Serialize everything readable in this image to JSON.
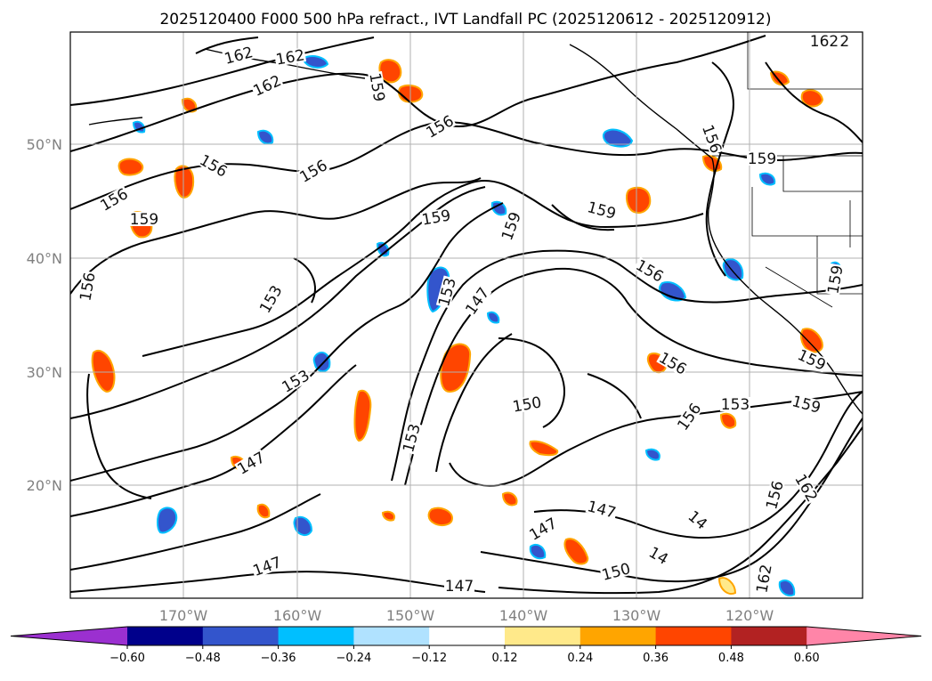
{
  "title": "2025120400 F000 500 hPa refract., IVT Landfall PC (2025120612 - 2025120912)",
  "map": {
    "lat_labels": [
      "50°N",
      "40°N",
      "30°N",
      "20°N"
    ],
    "lon_labels": [
      "170°W",
      "160°W",
      "150°W",
      "140°W",
      "130°W",
      "120°W"
    ],
    "contour_labels": [
      "162",
      "162",
      "162",
      "162",
      "159",
      "156",
      "156",
      "156",
      "156",
      "159",
      "159",
      "159",
      "159",
      "156",
      "159",
      "156",
      "156",
      "153",
      "147",
      "153",
      "156",
      "150",
      "153",
      "162",
      "159",
      "153",
      "147",
      "153",
      "147",
      "147",
      "150",
      "147",
      "147",
      "14",
      "14",
      "156",
      "162",
      "156",
      "159",
      "162",
      "159"
    ],
    "colors": {
      "contour": "#000000",
      "grid": "#b0b0b0",
      "coast": "#000000"
    }
  },
  "colorbar": {
    "ticks": [
      "−0.60",
      "−0.48",
      "−0.36",
      "−0.24",
      "−0.12",
      "0.12",
      "0.24",
      "0.36",
      "0.48",
      "0.60"
    ],
    "colors": [
      "#9b30d0",
      "#00008b",
      "#3355cc",
      "#00bfff",
      "#b0e2ff",
      "#ffffff",
      "#ffe98a",
      "#ffa500",
      "#ff4500",
      "#b22222",
      "#ff85a8"
    ]
  }
}
